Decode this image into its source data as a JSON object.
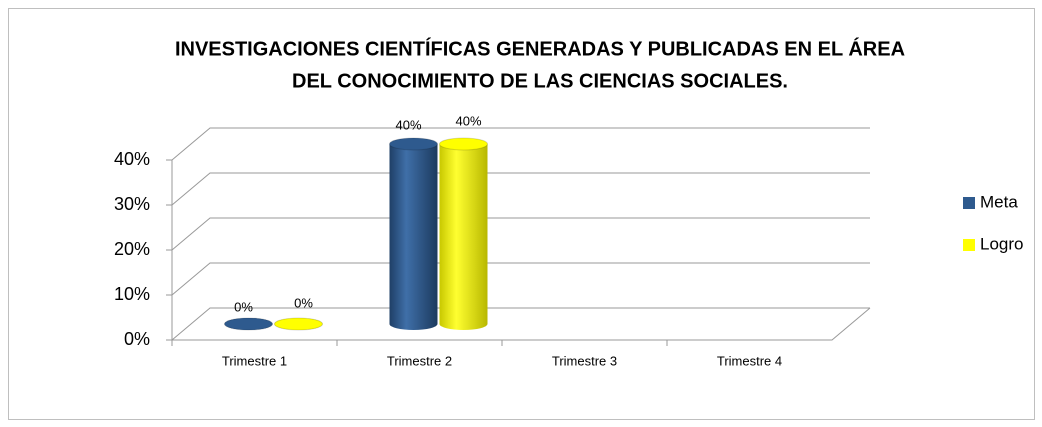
{
  "chart_data": {
    "type": "bar3d",
    "title": [
      "INVESTIGACIONES CIENTÍFICAS GENERADAS Y PUBLICADAS EN EL ÁREA",
      "DEL CONOCIMIENTO DE LAS CIENCIAS SOCIALES."
    ],
    "categories": [
      "Trimestre 1",
      "Trimestre 2",
      "Trimestre 3",
      "Trimestre 4"
    ],
    "series": [
      {
        "name": "Meta",
        "color": "#2e5a8e",
        "values": [
          0,
          40,
          null,
          null
        ],
        "value_labels": [
          "0%",
          "40%",
          null,
          null
        ]
      },
      {
        "name": "Logro",
        "color": "#ffff00",
        "values": [
          0,
          40,
          null,
          null
        ],
        "value_labels": [
          "0%",
          "40%",
          null,
          null
        ]
      }
    ],
    "ylim": [
      0,
      40
    ],
    "yticks": [
      {
        "value": 0,
        "label": "0%"
      },
      {
        "value": 10,
        "label": "10%"
      },
      {
        "value": 20,
        "label": "20%"
      },
      {
        "value": 30,
        "label": "30%"
      },
      {
        "value": 40,
        "label": "40%"
      }
    ],
    "grid": true,
    "legend": "right"
  }
}
